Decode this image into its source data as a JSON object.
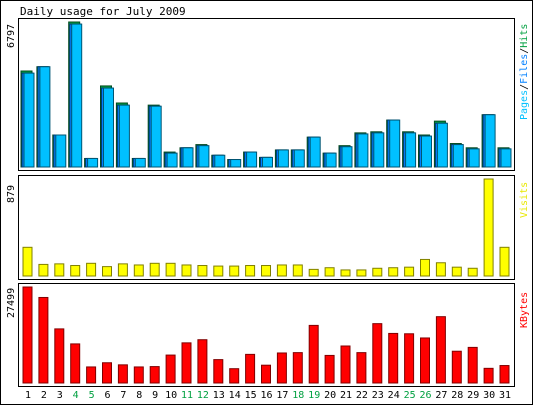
{
  "chart_data": [
    {
      "type": "bar",
      "title": "Daily usage for July 2009",
      "ymax_label": "6797",
      "ylim": [
        0,
        6797
      ],
      "legend": [
        {
          "text": "Pages",
          "color": "#00c0ff"
        },
        {
          "text": "Files",
          "color": "#0080ff"
        },
        {
          "text": "Hits",
          "color": "#00a040"
        }
      ],
      "categories": [
        "1",
        "2",
        "3",
        "4",
        "5",
        "6",
        "7",
        "8",
        "9",
        "10",
        "11",
        "12",
        "13",
        "14",
        "15",
        "16",
        "17",
        "18",
        "19",
        "20",
        "21",
        "22",
        "23",
        "24",
        "25",
        "26",
        "27",
        "28",
        "29",
        "30",
        "31"
      ],
      "series": [
        {
          "name": "Hits",
          "color": "#00a040",
          "values": [
            4500,
            4700,
            1500,
            6797,
            400,
            3800,
            3000,
            400,
            2900,
            700,
            900,
            1050,
            550,
            350,
            700,
            450,
            800,
            800,
            1400,
            650,
            1000,
            1600,
            1650,
            2200,
            1650,
            1500,
            2150,
            1100,
            900,
            2450,
            900
          ]
        },
        {
          "name": "Files",
          "color": "#0080ff",
          "values": [
            4400,
            4700,
            1500,
            6700,
            400,
            3700,
            2900,
            400,
            2850,
            650,
            900,
            1000,
            550,
            350,
            700,
            450,
            800,
            800,
            1400,
            650,
            950,
            1550,
            1600,
            2200,
            1600,
            1450,
            2050,
            1050,
            850,
            2450,
            850
          ]
        },
        {
          "name": "Pages",
          "color": "#00c0ff",
          "values": [
            4400,
            4700,
            1500,
            6700,
            400,
            3700,
            2900,
            400,
            2850,
            650,
            900,
            1000,
            550,
            350,
            700,
            450,
            800,
            800,
            1400,
            650,
            950,
            1550,
            1600,
            2200,
            1600,
            1450,
            2050,
            1050,
            850,
            2450,
            850
          ]
        }
      ]
    },
    {
      "type": "bar",
      "ymax_label": "879",
      "ylim": [
        0,
        879
      ],
      "legend": [
        {
          "text": "Visits",
          "color": "#e8e800"
        }
      ],
      "categories": [
        "1",
        "2",
        "3",
        "4",
        "5",
        "6",
        "7",
        "8",
        "9",
        "10",
        "11",
        "12",
        "13",
        "14",
        "15",
        "16",
        "17",
        "18",
        "19",
        "20",
        "21",
        "22",
        "23",
        "24",
        "25",
        "26",
        "27",
        "28",
        "29",
        "30",
        "31"
      ],
      "series": [
        {
          "name": "Visits",
          "color": "#ffff00",
          "values": [
            260,
            105,
            110,
            95,
            115,
            85,
            110,
            100,
            115,
            115,
            100,
            95,
            90,
            90,
            95,
            95,
            100,
            100,
            60,
            75,
            55,
            55,
            70,
            75,
            80,
            150,
            120,
            80,
            70,
            879,
            260
          ]
        }
      ]
    },
    {
      "type": "bar",
      "ymax_label": "27499",
      "ylim": [
        0,
        27499
      ],
      "legend": [
        {
          "text": "KBytes",
          "color": "#ff0000"
        }
      ],
      "categories": [
        "1",
        "2",
        "3",
        "4",
        "5",
        "6",
        "7",
        "8",
        "9",
        "10",
        "11",
        "12",
        "13",
        "14",
        "15",
        "16",
        "17",
        "18",
        "19",
        "20",
        "21",
        "22",
        "23",
        "24",
        "25",
        "26",
        "27",
        "28",
        "29",
        "30",
        "31"
      ],
      "weekend_days": [
        "4",
        "5",
        "11",
        "12",
        "18",
        "19",
        "25",
        "26"
      ],
      "series": [
        {
          "name": "KBytes",
          "color": "#ff0000",
          "values": [
            27499,
            24500,
            15500,
            11200,
            4600,
            5800,
            5200,
            4600,
            4700,
            8000,
            11500,
            12400,
            6700,
            4100,
            8200,
            5100,
            8600,
            8700,
            16500,
            7900,
            10600,
            8700,
            17000,
            14200,
            14100,
            12900,
            19000,
            9100,
            10200,
            4200,
            5000
          ]
        }
      ]
    }
  ]
}
